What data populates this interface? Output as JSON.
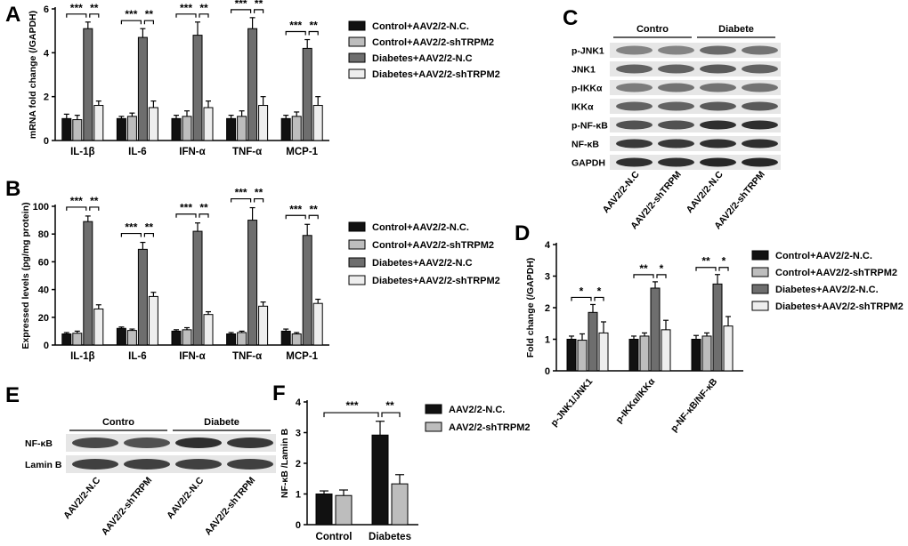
{
  "colors": {
    "black": "#111111",
    "lightgray": "#bdbdbd",
    "darkgray": "#6e6e6e",
    "verylight": "#eeeeee"
  },
  "chart_data": [
    {
      "panel": "A",
      "type": "bar",
      "ylabel": "mRNA fold change (/GAPDH)",
      "ylim": [
        0,
        6
      ],
      "yticks": [
        "0",
        "2",
        "4",
        "6"
      ],
      "categories": [
        "IL-1β",
        "IL-6",
        "IFN-α",
        "TNF-α",
        "MCP-1"
      ],
      "series": [
        {
          "name": "Control+AAV2/2-N.C.",
          "values": [
            1.0,
            1.0,
            1.0,
            1.0,
            1.0
          ],
          "errors": [
            0.2,
            0.1,
            0.15,
            0.15,
            0.15
          ],
          "color": "#111111"
        },
        {
          "name": "Control+AAV2/2-shTRPM2",
          "values": [
            0.95,
            1.1,
            1.1,
            1.1,
            1.1
          ],
          "errors": [
            0.2,
            0.15,
            0.25,
            0.25,
            0.2
          ],
          "color": "#bdbdbd"
        },
        {
          "name": "Diabetes+AAV2/2-N.C",
          "values": [
            5.1,
            4.7,
            4.8,
            5.1,
            4.2
          ],
          "errors": [
            0.3,
            0.4,
            0.6,
            0.5,
            0.4
          ],
          "color": "#6e6e6e"
        },
        {
          "name": "Diabetes+AAV2/2-shTRPM2",
          "values": [
            1.6,
            1.5,
            1.5,
            1.6,
            1.6
          ],
          "errors": [
            0.2,
            0.3,
            0.3,
            0.4,
            0.4
          ],
          "color": "#eeeeee"
        }
      ],
      "significance": [
        "***",
        "**"
      ]
    },
    {
      "panel": "B",
      "type": "bar",
      "ylabel": "Expressed levels (pg/mg protein)",
      "ylim": [
        0,
        100
      ],
      "yticks": [
        "0",
        "20",
        "40",
        "60",
        "80",
        "100"
      ],
      "categories": [
        "IL-1β",
        "IL-6",
        "IFN-α",
        "TNF-α",
        "MCP-1"
      ],
      "series": [
        {
          "name": "Control+AAV2/2-N.C.",
          "values": [
            8,
            12,
            10,
            8,
            10
          ],
          "errors": [
            1,
            1,
            1,
            1,
            1.5
          ],
          "color": "#111111"
        },
        {
          "name": "Control+AAV2/2-shTRPM2",
          "values": [
            8.5,
            10.5,
            11,
            9,
            8
          ],
          "errors": [
            1.5,
            1,
            1.5,
            1,
            1
          ],
          "color": "#bdbdbd"
        },
        {
          "name": "Diabetes+AAV2/2-N.C",
          "values": [
            89,
            69,
            82,
            90,
            79
          ],
          "errors": [
            4,
            5,
            6,
            9,
            8
          ],
          "color": "#6e6e6e"
        },
        {
          "name": "Diabetes+AAV2/2-shTRPM2",
          "values": [
            26,
            35,
            22,
            28,
            30
          ],
          "errors": [
            3,
            3,
            2,
            3,
            3
          ],
          "color": "#eeeeee"
        }
      ],
      "significance": [
        "***",
        "**"
      ]
    },
    {
      "panel": "D",
      "type": "bar",
      "ylabel": "Fold change (/GAPDH)",
      "ylim": [
        0,
        4
      ],
      "yticks": [
        "0",
        "1",
        "2",
        "3",
        "4"
      ],
      "categories": [
        "p-JNK1/JNK1",
        "p-IKKα/IKKα",
        "p-NF-κB/NF-κB"
      ],
      "series": [
        {
          "name": "Control+AAV2/2-N.C.",
          "values": [
            1.0,
            1.0,
            1.0
          ],
          "errors": [
            0.1,
            0.1,
            0.12
          ],
          "color": "#111111"
        },
        {
          "name": "Control+AAV2/2-shTRPM2",
          "values": [
            0.97,
            1.1,
            1.1
          ],
          "errors": [
            0.2,
            0.1,
            0.1
          ],
          "color": "#bdbdbd"
        },
        {
          "name": "Diabetes+AAV2/2-N.C.",
          "values": [
            1.85,
            2.62,
            2.75
          ],
          "errors": [
            0.25,
            0.2,
            0.3
          ],
          "color": "#6e6e6e"
        },
        {
          "name": "Diabetes+AAV2/2-shTRPM2",
          "values": [
            1.2,
            1.3,
            1.42
          ],
          "errors": [
            0.35,
            0.3,
            0.3
          ],
          "color": "#eeeeee"
        }
      ],
      "significance": [
        [
          "*",
          "*"
        ],
        [
          "**",
          "*"
        ],
        [
          "**",
          "*"
        ]
      ]
    },
    {
      "panel": "F",
      "type": "bar",
      "ylabel": "NF-κB /Lamin B",
      "ylim": [
        0,
        4
      ],
      "yticks": [
        "0",
        "1",
        "2",
        "3",
        "4"
      ],
      "categories": [
        "Control",
        "Diabetes"
      ],
      "series": [
        {
          "name": "AAV2/2-N.C.",
          "values": [
            1.0,
            2.92
          ],
          "errors": [
            0.1,
            0.45
          ],
          "color": "#111111"
        },
        {
          "name": "AAV2/2-shTRPM2",
          "values": [
            0.95,
            1.33
          ],
          "errors": [
            0.18,
            0.3
          ],
          "color": "#bdbdbd"
        }
      ],
      "significance": [
        "***",
        "**"
      ]
    }
  ],
  "panels": {
    "A": "A",
    "B": "B",
    "C": "C",
    "D": "D",
    "E": "E",
    "F": "F"
  },
  "blot_c": {
    "groups": [
      "Contro",
      "Diabete"
    ],
    "rows": [
      "p-JNK1",
      "JNK1",
      "p-IKKα",
      "IKKα",
      "p-NF-κB",
      "NF-κB",
      "GAPDH"
    ],
    "lanes": [
      "AAV2/2-N.C",
      "AAV2/2-shTRPM",
      "AAV2/2-N.C",
      "AAV2/2-shTRPM"
    ]
  },
  "blot_e": {
    "groups": [
      "Contro",
      "Diabete"
    ],
    "rows": [
      "NF-κB",
      "Lamin B"
    ],
    "lanes": [
      "AAV2/2-N.C",
      "AAV2/2-shTRPM",
      "AAV2/2-N.C",
      "AAV2/2-shTRPM"
    ]
  }
}
